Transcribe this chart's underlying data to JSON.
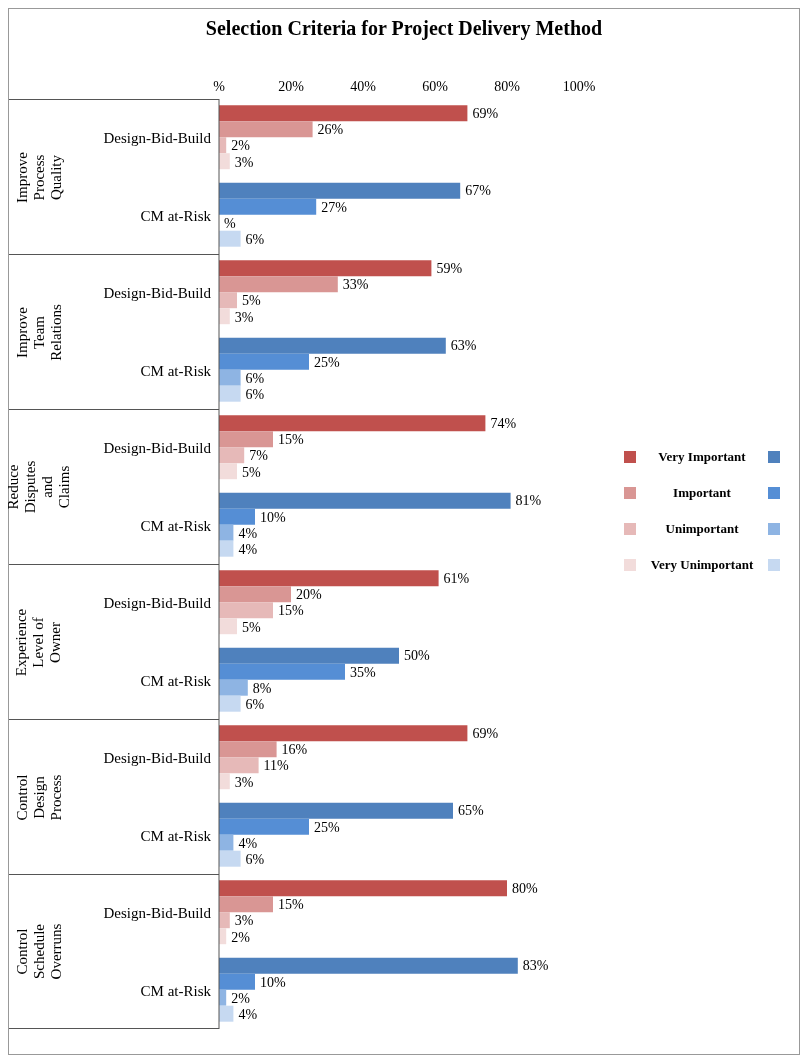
{
  "chart_data": {
    "type": "bar",
    "orientation": "horizontal",
    "title": "Selection Criteria for Project Delivery Method",
    "categories": [
      "Design-Bid-Build",
      "CM at-Risk",
      "Design-Bid-Build",
      "CM at-Risk",
      "Design-Bid-Build",
      "CM at-Risk",
      "Design-Bid-Build",
      "CM at-Risk",
      "Design-Bid-Build",
      "CM at-Risk",
      "Design-Bid-Build",
      "CM at-Risk"
    ],
    "annotations": [
      "Improve Process Quality",
      "Improve Team Relations",
      "Reduce Disputes and Claims",
      "Experience Level of Owner",
      "Control Design Process",
      "Control Schedule Overruns"
    ],
    "series": [
      {
        "name": "Very Important",
        "color": "#c0504d",
        "colors": [
          "#c0504d",
          "#4f81bd",
          "#c0504d",
          "#4f81bd",
          "#c0504d",
          "#4f81bd",
          "#c0504d",
          "#4f81bd",
          "#c0504d",
          "#4f81bd",
          "#c0504d",
          "#4f81bd"
        ],
        "values": [
          69,
          67,
          59,
          63,
          74,
          81,
          61,
          50,
          69,
          65,
          80,
          83
        ],
        "value_labels": [
          "69%",
          "67%",
          "59%",
          "63%",
          "74%",
          "81%",
          "61%",
          "50%",
          "69%",
          "65%",
          "80%",
          "83%"
        ]
      },
      {
        "name": "Important",
        "color": "#d99694",
        "colors": [
          "#d99694",
          "#558ed5",
          "#d99694",
          "#558ed5",
          "#d99694",
          "#558ed5",
          "#d99694",
          "#558ed5",
          "#d99694",
          "#558ed5",
          "#d99694",
          "#558ed5"
        ],
        "values": [
          26,
          27,
          33,
          25,
          15,
          10,
          20,
          35,
          16,
          25,
          15,
          10
        ],
        "value_labels": [
          "26%",
          "27%",
          "33%",
          "25%",
          "15%",
          "10%",
          "20%",
          "35%",
          "16%",
          "25%",
          "15%",
          "10%"
        ]
      },
      {
        "name": "Unimportant",
        "color": "#e6b9b8",
        "colors": [
          "#e6b9b8",
          "#8eb4e3",
          "#e6b9b8",
          "#8eb4e3",
          "#e6b9b8",
          "#8eb4e3",
          "#e6b9b8",
          "#8eb4e3",
          "#e6b9b8",
          "#8eb4e3",
          "#e6b9b8",
          "#8eb4e3"
        ],
        "values": [
          2,
          0,
          5,
          6,
          7,
          4,
          15,
          8,
          11,
          4,
          3,
          2
        ],
        "value_labels": [
          "2%",
          "%",
          "5%",
          "6%",
          "7%",
          "4%",
          "15%",
          "8%",
          "11%",
          "4%",
          "3%",
          "2%"
        ]
      },
      {
        "name": "Very Unimportant",
        "color": "#f2dcdb",
        "colors": [
          "#f2dcdb",
          "#c6d9f1",
          "#f2dcdb",
          "#c6d9f1",
          "#f2dcdb",
          "#c6d9f1",
          "#f2dcdb",
          "#c6d9f1",
          "#f2dcdb",
          "#c6d9f1",
          "#f2dcdb",
          "#c6d9f1"
        ],
        "values": [
          3,
          6,
          3,
          6,
          5,
          4,
          5,
          6,
          3,
          6,
          2,
          4
        ],
        "value_labels": [
          "3%",
          "6%",
          "3%",
          "6%",
          "5%",
          "4%",
          "5%",
          "6%",
          "3%",
          "6%",
          "2%",
          "4%"
        ]
      }
    ],
    "xlim": [
      0,
      100
    ],
    "xticks": [
      {
        "value": 0,
        "label": "%"
      },
      {
        "value": 20,
        "label": "20%"
      },
      {
        "value": 40,
        "label": "40%"
      },
      {
        "value": 60,
        "label": "60%"
      },
      {
        "value": 80,
        "label": "80%"
      },
      {
        "value": 100,
        "label": "100%"
      }
    ],
    "legend": "right"
  }
}
